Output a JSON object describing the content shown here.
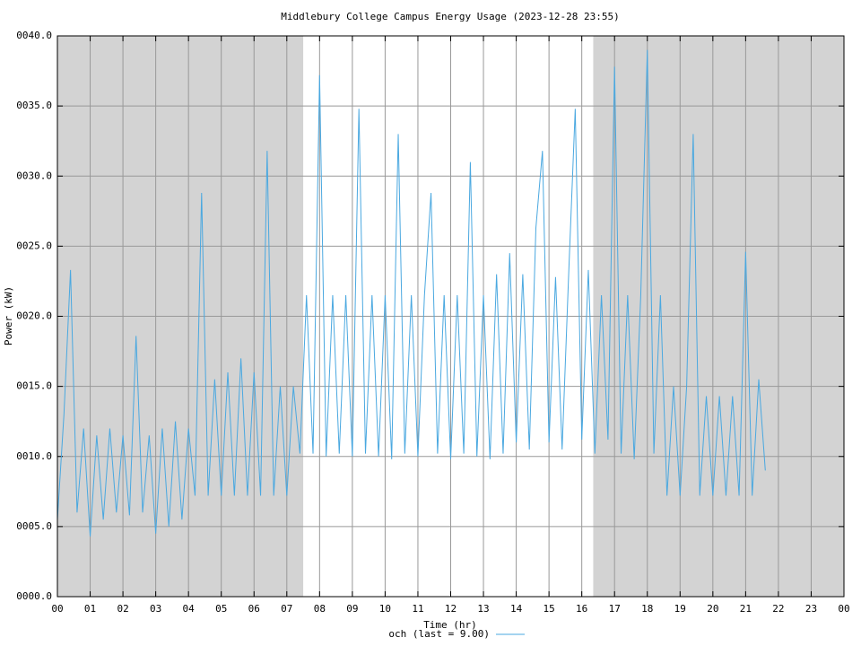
{
  "chart_data": {
    "type": "line",
    "title": "Middlebury College Campus Energy Usage (2023-12-28 23:55)",
    "xlabel": "Time (hr)",
    "ylabel": "Power (kW)",
    "x": [
      0,
      0.2,
      0.4,
      0.6,
      0.8,
      1,
      1.2,
      1.4,
      1.6,
      1.8,
      2,
      2.2,
      2.4,
      2.6,
      2.8,
      3,
      3.2,
      3.4,
      3.6,
      3.8,
      4,
      4.2,
      4.4,
      4.6,
      4.8,
      5,
      5.2,
      5.4,
      5.6,
      5.8,
      6,
      6.2,
      6.4,
      6.6,
      6.8,
      7,
      7.2,
      7.4,
      7.6,
      7.8,
      8,
      8.2,
      8.4,
      8.6,
      8.8,
      9,
      9.2,
      9.4,
      9.6,
      9.8,
      10,
      10.2,
      10.4,
      10.6,
      10.8,
      11,
      11.2,
      11.4,
      11.6,
      11.8,
      12,
      12.2,
      12.4,
      12.6,
      12.8,
      13,
      13.2,
      13.4,
      13.6,
      13.8,
      14,
      14.2,
      14.4,
      14.6,
      14.8,
      15,
      15.2,
      15.4,
      15.6,
      15.8,
      16,
      16.2,
      16.4,
      16.6,
      16.8,
      17,
      17.2,
      17.4,
      17.6,
      17.8,
      18,
      18.2,
      18.4,
      18.6,
      18.8,
      19,
      19.2,
      19.4,
      19.6,
      19.8,
      20,
      20.2,
      20.4,
      20.6,
      20.8,
      21,
      21.2,
      21.4,
      21.6
    ],
    "series": [
      {
        "name": "och (last = 9.00)",
        "color": "#4aa8e0",
        "values": [
          5.5,
          13,
          23.3,
          6,
          12,
          4.3,
          11.5,
          5.5,
          12,
          6,
          11.5,
          5.8,
          18.6,
          6,
          11.5,
          4.5,
          12,
          5,
          12.5,
          5.5,
          12,
          7.2,
          28.8,
          7.2,
          15.5,
          7.2,
          16,
          7.2,
          17,
          7.2,
          16,
          7.2,
          31.8,
          7.2,
          15,
          7.2,
          15,
          10.2,
          21.5,
          10.2,
          37.2,
          10,
          21.5,
          10.2,
          21.5,
          10,
          34.8,
          10.2,
          21.5,
          10,
          21.5,
          9.8,
          33,
          10.2,
          21.5,
          10,
          21.5,
          28.8,
          10.2,
          21.5,
          9.8,
          21.5,
          10.2,
          31,
          10,
          21.5,
          9.8,
          23,
          10.2,
          24.5,
          11,
          23,
          10.5,
          26.3,
          31.8,
          11,
          22.8,
          10.5,
          23,
          34.8,
          11.2,
          23.3,
          10.2,
          21.5,
          11.2,
          37.8,
          10.2,
          21.5,
          9.8,
          21.5,
          39,
          10.2,
          21.5,
          7.2,
          15,
          7.2,
          15,
          33,
          7.2,
          14.3,
          7.2,
          14.3,
          7.2,
          14.3,
          7.2,
          24.6,
          7.2,
          15.5,
          9
        ]
      }
    ],
    "xlim": [
      0,
      24
    ],
    "xticks": [
      {
        "value": 0,
        "label": "00"
      },
      {
        "value": 1,
        "label": "01"
      },
      {
        "value": 2,
        "label": "02"
      },
      {
        "value": 3,
        "label": "03"
      },
      {
        "value": 4,
        "label": "04"
      },
      {
        "value": 5,
        "label": "05"
      },
      {
        "value": 6,
        "label": "06"
      },
      {
        "value": 7,
        "label": "07"
      },
      {
        "value": 8,
        "label": "08"
      },
      {
        "value": 9,
        "label": "09"
      },
      {
        "value": 10,
        "label": "10"
      },
      {
        "value": 11,
        "label": "11"
      },
      {
        "value": 12,
        "label": "12"
      },
      {
        "value": 13,
        "label": "13"
      },
      {
        "value": 14,
        "label": "14"
      },
      {
        "value": 15,
        "label": "15"
      },
      {
        "value": 16,
        "label": "16"
      },
      {
        "value": 17,
        "label": "17"
      },
      {
        "value": 18,
        "label": "18"
      },
      {
        "value": 19,
        "label": "19"
      },
      {
        "value": 20,
        "label": "20"
      },
      {
        "value": 21,
        "label": "21"
      },
      {
        "value": 22,
        "label": "22"
      },
      {
        "value": 23,
        "label": "23"
      },
      {
        "value": 24,
        "label": "00"
      }
    ],
    "ylim": [
      0,
      40
    ],
    "yticks": [
      {
        "value": 0,
        "label": "0000.0"
      },
      {
        "value": 5,
        "label": "0005.0"
      },
      {
        "value": 10,
        "label": "0010.0"
      },
      {
        "value": 15,
        "label": "0015.0"
      },
      {
        "value": 20,
        "label": "0020.0"
      },
      {
        "value": 25,
        "label": "0025.0"
      },
      {
        "value": 30,
        "label": "0030.0"
      },
      {
        "value": 35,
        "label": "0035.0"
      },
      {
        "value": 40,
        "label": "0040.0"
      }
    ],
    "shaded_regions": [
      [
        0,
        7.5
      ],
      [
        16.35,
        24
      ]
    ],
    "shade_color": "#d3d3d3",
    "grid": true,
    "legend": "bottom"
  }
}
